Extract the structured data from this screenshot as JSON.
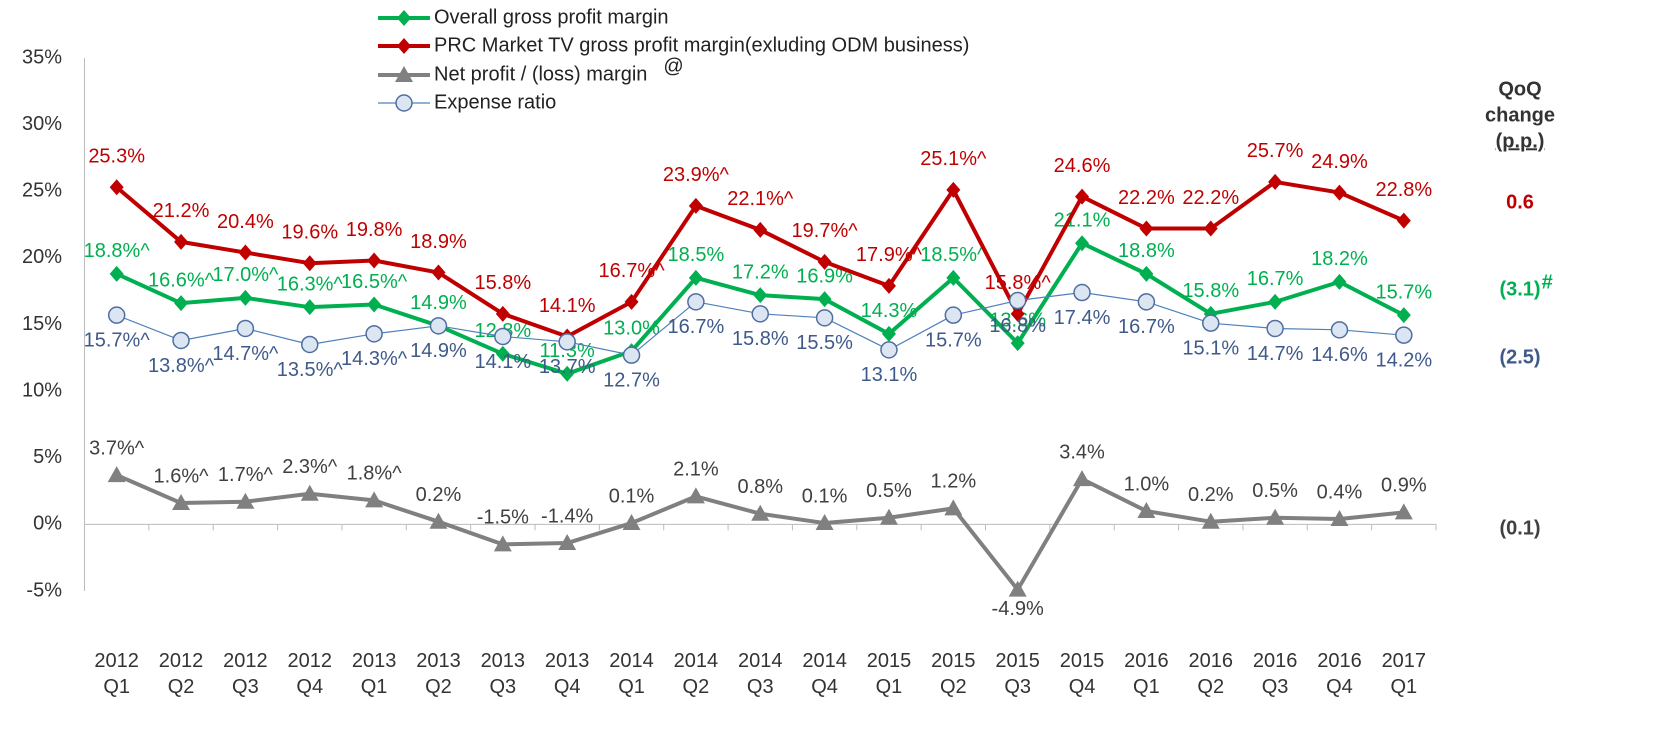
{
  "chart_data": {
    "type": "line",
    "categories": [
      "2012 Q1",
      "2012 Q2",
      "2012 Q3",
      "2012 Q4",
      "2013 Q1",
      "2013 Q2",
      "2013 Q3",
      "2013 Q4",
      "2014 Q1",
      "2014 Q2",
      "2014 Q3",
      "2014 Q4",
      "2015 Q1",
      "2015 Q2",
      "2015 Q3",
      "2015 Q4",
      "2016 Q1",
      "2016 Q2",
      "2016 Q3",
      "2016 Q4",
      "2017 Q1"
    ],
    "series": [
      {
        "name": "Overall gross profit margin",
        "color": "#00b050",
        "marker": "diamond",
        "values": [
          18.8,
          16.6,
          17.0,
          16.3,
          16.5,
          14.9,
          12.8,
          11.3,
          13.0,
          18.5,
          17.2,
          16.9,
          14.3,
          18.5,
          13.6,
          21.1,
          18.8,
          15.8,
          16.7,
          18.2,
          15.7
        ],
        "value_labels": [
          "18.8%^",
          "16.6%^",
          "17.0%^",
          "16.3%^",
          "16.5%^",
          "14.9%",
          "12.8%",
          "11.3%",
          "13.0%",
          "18.5%",
          "17.2%",
          "16.9%",
          "14.3%",
          "18.5%^",
          "13.6%",
          "21.1%",
          "18.8%",
          "15.8%",
          "16.7%",
          "18.2%",
          "15.7%"
        ]
      },
      {
        "name": "PRC Market TV gross profit margin(exluding ODM business)",
        "color": "#c00000",
        "marker": "diamond",
        "values": [
          25.3,
          21.2,
          20.4,
          19.6,
          19.8,
          18.9,
          15.8,
          14.1,
          16.7,
          23.9,
          22.1,
          19.7,
          17.9,
          25.1,
          15.8,
          24.6,
          22.2,
          22.2,
          25.7,
          24.9,
          22.8
        ],
        "value_labels": [
          "25.3%",
          "21.2%",
          "20.4%",
          "19.6%",
          "19.8%",
          "18.9%",
          "15.8%",
          "14.1%",
          "16.7%^",
          "23.9%^",
          "22.1%^",
          "19.7%^",
          "17.9%^",
          "25.1%^",
          "15.8%^",
          "24.6%",
          "22.2%",
          "22.2%",
          "25.7%",
          "24.9%",
          "22.8%"
        ]
      },
      {
        "name": "Net profit / (loss) margin",
        "name_note": "@",
        "color": "#808080",
        "marker": "triangle",
        "values": [
          3.7,
          1.6,
          1.7,
          2.3,
          1.8,
          0.2,
          -1.5,
          -1.4,
          0.1,
          2.1,
          0.8,
          0.1,
          0.5,
          1.2,
          -4.9,
          3.4,
          1.0,
          0.2,
          0.5,
          0.4,
          0.9
        ],
        "value_labels": [
          "3.7%^",
          "1.6%^",
          "1.7%^",
          "2.3%^",
          "1.8%^",
          "0.2%",
          "-1.5%",
          "-1.4%",
          "0.1%",
          "2.1%",
          "0.8%",
          "0.1%",
          "0.5%",
          "1.2%",
          "-4.9%",
          "3.4%",
          "1.0%",
          "0.2%",
          "0.5%",
          "0.4%",
          "0.9%"
        ]
      },
      {
        "name": "Expense ratio",
        "color": "#4f81bd",
        "marker": "circle",
        "values": [
          15.7,
          13.8,
          14.7,
          13.5,
          14.3,
          14.9,
          14.1,
          13.7,
          12.7,
          16.7,
          15.8,
          15.5,
          13.1,
          15.7,
          16.8,
          17.4,
          16.7,
          15.1,
          14.7,
          14.6,
          14.2
        ],
        "value_labels": [
          "15.7%^",
          "13.8%^",
          "14.7%^",
          "13.5%^",
          "14.3%^",
          "14.9%",
          "14.1%",
          "13.7%",
          "12.7%",
          "16.7%",
          "15.8%",
          "15.5%",
          "13.1%",
          "15.7%",
          "16.8%",
          "17.4%",
          "16.7%",
          "15.1%",
          "14.7%",
          "14.6%",
          "14.2%"
        ]
      }
    ],
    "ylim": [
      -5,
      35
    ],
    "yticks": [
      {
        "value": -5,
        "label": "-5%"
      },
      {
        "value": 0,
        "label": "0%"
      },
      {
        "value": 5,
        "label": "5%"
      },
      {
        "value": 10,
        "label": "10%"
      },
      {
        "value": 15,
        "label": "15%"
      },
      {
        "value": 20,
        "label": "20%"
      },
      {
        "value": 25,
        "label": "25%"
      },
      {
        "value": 30,
        "label": "30%"
      },
      {
        "value": 35,
        "label": "35%"
      }
    ],
    "qoq": {
      "title_lines": [
        "QoQ",
        "change",
        "(p.p.)"
      ],
      "values": [
        {
          "text": "0.6",
          "color": "#c00000"
        },
        {
          "text": "(3.1)",
          "note": "#",
          "color": "#00b050"
        },
        {
          "text": "(2.5)",
          "color": "#3f5a8a"
        },
        {
          "text": "(0.1)",
          "color": "#404040"
        }
      ]
    }
  }
}
